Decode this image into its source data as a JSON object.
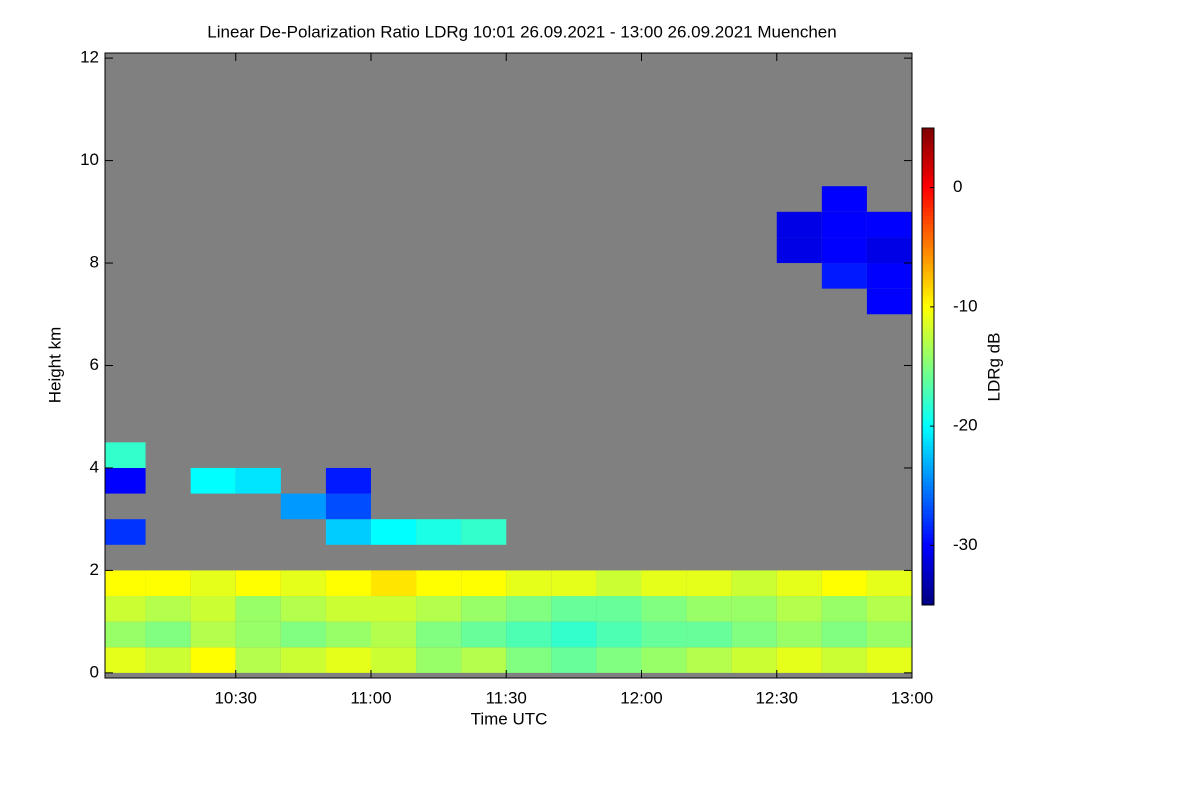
{
  "chart_data": {
    "type": "heatmap",
    "title": "Linear De-Polarization Ratio LDRg   10:01 26.09.2021 - 13:00 26.09.2021 Muenchen",
    "x_label": "Time UTC",
    "y_label": "Height km",
    "colorbar_label": "LDRg dB",
    "colormap": "jet",
    "missing_color": "#808080",
    "xlim": [
      "10:01",
      "13:00"
    ],
    "xticks": [
      "10:30",
      "11:00",
      "11:30",
      "12:00",
      "12:30",
      "13:00"
    ],
    "ylim": [
      -0.1,
      12.1
    ],
    "yticks": [
      0,
      2,
      4,
      6,
      8,
      10,
      12
    ],
    "clim": [
      -35,
      5
    ],
    "cticks": [
      0,
      -10,
      -20,
      -30
    ],
    "x_bins": [
      "10:01",
      "10:10",
      "10:20",
      "10:30",
      "10:40",
      "10:50",
      "11:00",
      "11:10",
      "11:20",
      "11:30",
      "11:40",
      "11:50",
      "12:00",
      "12:10",
      "12:20",
      "12:30",
      "12:40",
      "12:50",
      "13:00"
    ],
    "y_bins": [
      0,
      0.5,
      1,
      1.5,
      2,
      2.5,
      3,
      3.5,
      4,
      4.5,
      5,
      5.5,
      6,
      6.5,
      7,
      7.5,
      8,
      8.5,
      9,
      9.5,
      10,
      10.5,
      11,
      11.5,
      12
    ],
    "z": [
      [
        -11,
        -12,
        -10,
        -13,
        -12,
        -11,
        -12,
        -14,
        -13,
        -15,
        -16,
        -15,
        -14,
        -13,
        -12,
        -11,
        -12,
        -11
      ],
      [
        -14,
        -15,
        -13,
        -14,
        -15,
        -14,
        -13,
        -15,
        -16,
        -17,
        -18,
        -17,
        -16,
        -16,
        -15,
        -14,
        -15,
        -14
      ],
      [
        -12,
        -13,
        -12,
        -14,
        -13,
        -12,
        -12,
        -13,
        -14,
        -15,
        -16,
        -16,
        -15,
        -14,
        -14,
        -13,
        -14,
        -13
      ],
      [
        -10,
        -10,
        -11,
        -10,
        -11,
        -10,
        -9,
        -10,
        -10,
        -11,
        -11,
        -12,
        -11,
        -11,
        -12,
        -11,
        -10,
        -11
      ],
      [
        null,
        null,
        null,
        null,
        null,
        null,
        null,
        null,
        null,
        null,
        null,
        null,
        null,
        null,
        null,
        null,
        null,
        null
      ],
      [
        -28,
        null,
        null,
        null,
        null,
        -22,
        -20,
        -19,
        -18,
        null,
        null,
        null,
        null,
        null,
        null,
        null,
        null,
        null
      ],
      [
        null,
        null,
        null,
        null,
        -24,
        -27,
        null,
        null,
        null,
        null,
        null,
        null,
        null,
        null,
        null,
        null,
        null,
        null
      ],
      [
        -30,
        null,
        -20,
        -21,
        null,
        -29,
        null,
        null,
        null,
        null,
        null,
        null,
        null,
        null,
        null,
        null,
        null,
        null
      ],
      [
        -18,
        null,
        null,
        null,
        null,
        null,
        null,
        null,
        null,
        null,
        null,
        null,
        null,
        null,
        null,
        null,
        null,
        null
      ],
      [
        null,
        null,
        null,
        null,
        null,
        null,
        null,
        null,
        null,
        null,
        null,
        null,
        null,
        null,
        null,
        null,
        null,
        null
      ],
      [
        null,
        null,
        null,
        null,
        null,
        null,
        null,
        null,
        null,
        null,
        null,
        null,
        null,
        null,
        null,
        null,
        null,
        null
      ],
      [
        null,
        null,
        null,
        null,
        null,
        null,
        null,
        null,
        null,
        null,
        null,
        null,
        null,
        null,
        null,
        null,
        null,
        null
      ],
      [
        null,
        null,
        null,
        null,
        null,
        null,
        null,
        null,
        null,
        null,
        null,
        null,
        null,
        null,
        null,
        null,
        null,
        null
      ],
      [
        null,
        null,
        null,
        null,
        null,
        null,
        null,
        null,
        null,
        null,
        null,
        null,
        null,
        null,
        null,
        null,
        null,
        null
      ],
      [
        null,
        null,
        null,
        null,
        null,
        null,
        null,
        null,
        null,
        null,
        null,
        null,
        null,
        null,
        null,
        null,
        null,
        -30
      ],
      [
        null,
        null,
        null,
        null,
        null,
        null,
        null,
        null,
        null,
        null,
        null,
        null,
        null,
        null,
        null,
        null,
        -29,
        -30
      ],
      [
        null,
        null,
        null,
        null,
        null,
        null,
        null,
        null,
        null,
        null,
        null,
        null,
        null,
        null,
        null,
        -31,
        -30,
        -31
      ],
      [
        null,
        null,
        null,
        null,
        null,
        null,
        null,
        null,
        null,
        null,
        null,
        null,
        null,
        null,
        null,
        -31,
        -30,
        -30
      ],
      [
        null,
        null,
        null,
        null,
        null,
        null,
        null,
        null,
        null,
        null,
        null,
        null,
        null,
        null,
        null,
        null,
        -30,
        null
      ],
      [
        null,
        null,
        null,
        null,
        null,
        null,
        null,
        null,
        null,
        null,
        null,
        null,
        null,
        null,
        null,
        null,
        null,
        null
      ],
      [
        null,
        null,
        null,
        null,
        null,
        null,
        null,
        null,
        null,
        null,
        null,
        null,
        null,
        null,
        null,
        null,
        null,
        null
      ],
      [
        null,
        null,
        null,
        null,
        null,
        null,
        null,
        null,
        null,
        null,
        null,
        null,
        null,
        null,
        null,
        null,
        null,
        null
      ],
      [
        null,
        null,
        null,
        null,
        null,
        null,
        null,
        null,
        null,
        null,
        null,
        null,
        null,
        null,
        null,
        null,
        null,
        null
      ],
      [
        null,
        null,
        null,
        null,
        null,
        null,
        null,
        null,
        null,
        null,
        null,
        null,
        null,
        null,
        null,
        null,
        null,
        null
      ]
    ]
  }
}
